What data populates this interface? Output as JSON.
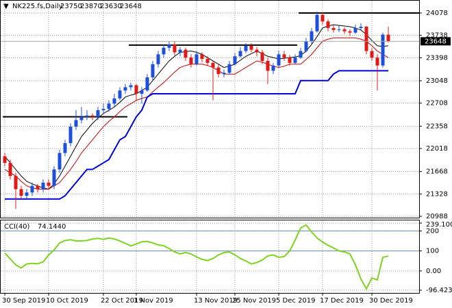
{
  "chart_data": {
    "type": "candlestick",
    "title": "NK225.fs,Daily",
    "up_color": "#1f4fd8",
    "down_color": "#e01818",
    "categories": [
      "30 Sep 2019",
      null,
      null,
      null,
      null,
      null,
      null,
      null,
      "10 Oct 2019",
      null,
      null,
      null,
      null,
      null,
      null,
      null,
      null,
      null,
      "22 Oct 2019",
      null,
      null,
      null,
      null,
      null,
      "1 Nov 2019",
      null,
      null,
      null,
      null,
      null,
      null,
      null,
      null,
      null,
      null,
      "13 Nov 2019",
      null,
      null,
      null,
      null,
      null,
      null,
      "25 Nov 2019",
      null,
      null,
      null,
      null,
      null,
      null,
      null,
      "5 Dec 2019",
      null,
      null,
      null,
      null,
      null,
      null,
      null,
      "17 Dec 2019",
      null,
      null,
      null,
      null,
      null,
      null,
      null,
      null,
      "30 Dec 2019",
      null,
      null,
      null
    ],
    "candles": [
      [
        21900,
        21950,
        21750,
        21800
      ],
      [
        21800,
        21850,
        21550,
        21600
      ],
      [
        21600,
        21650,
        21100,
        21400
      ],
      [
        21400,
        21450,
        21250,
        21300
      ],
      [
        21300,
        21400,
        21250,
        21350
      ],
      [
        21350,
        21500,
        21300,
        21450
      ],
      [
        21450,
        21480,
        21350,
        21400
      ],
      [
        21400,
        21550,
        21350,
        21500
      ],
      [
        21500,
        21550,
        21400,
        21450
      ],
      [
        21450,
        21750,
        21400,
        21700
      ],
      [
        21700,
        22000,
        21650,
        21950
      ],
      [
        21950,
        22150,
        21900,
        22100
      ],
      [
        22100,
        22400,
        22050,
        22350
      ],
      [
        22350,
        22600,
        22300,
        22450
      ],
      [
        22450,
        22650,
        22400,
        22500
      ],
      [
        22500,
        22600,
        22450,
        22520
      ],
      [
        22520,
        22550,
        22450,
        22500
      ],
      [
        22500,
        22650,
        22450,
        22600
      ],
      [
        22600,
        22700,
        22550,
        22620
      ],
      [
        22620,
        22750,
        22580,
        22700
      ],
      [
        22700,
        22850,
        22650,
        22780
      ],
      [
        22780,
        22950,
        22750,
        22900
      ],
      [
        22900,
        23000,
        22850,
        22950
      ],
      [
        22950,
        23020,
        22900,
        22980
      ],
      [
        22980,
        23000,
        22750,
        22850
      ],
      [
        22850,
        22950,
        22700,
        22900
      ],
      [
        22900,
        23150,
        22880,
        23100
      ],
      [
        23100,
        23350,
        23050,
        23300
      ],
      [
        23300,
        23500,
        23250,
        23450
      ],
      [
        23450,
        23600,
        23400,
        23550
      ],
      [
        23550,
        23650,
        23500,
        23600
      ],
      [
        23600,
        23650,
        23430,
        23480
      ],
      [
        23480,
        23560,
        23420,
        23520
      ],
      [
        23520,
        23550,
        23350,
        23400
      ],
      [
        23400,
        23450,
        23250,
        23300
      ],
      [
        23300,
        23500,
        23280,
        23450
      ],
      [
        23450,
        23480,
        23330,
        23380
      ],
      [
        23380,
        23420,
        23280,
        23320
      ],
      [
        23320,
        23350,
        22750,
        23250
      ],
      [
        23250,
        23300,
        23100,
        23150
      ],
      [
        23150,
        23220,
        23100,
        23170
      ],
      [
        23170,
        23350,
        23150,
        23300
      ],
      [
        23300,
        23470,
        23280,
        23420
      ],
      [
        23420,
        23560,
        23400,
        23500
      ],
      [
        23500,
        23620,
        23470,
        23580
      ],
      [
        23580,
        23620,
        23480,
        23520
      ],
      [
        23520,
        23560,
        23420,
        23480
      ],
      [
        23480,
        23520,
        23300,
        23350
      ],
      [
        23350,
        23400,
        23000,
        23200
      ],
      [
        23200,
        23320,
        23150,
        23280
      ],
      [
        23280,
        23500,
        23250,
        23450
      ],
      [
        23450,
        23500,
        23350,
        23400
      ],
      [
        23400,
        23440,
        23280,
        23320
      ],
      [
        23320,
        23450,
        23300,
        23400
      ],
      [
        23400,
        23550,
        23380,
        23500
      ],
      [
        23500,
        23700,
        23480,
        23650
      ],
      [
        23650,
        23850,
        23600,
        23800
      ],
      [
        23800,
        24100,
        23780,
        24050
      ],
      [
        24050,
        24090,
        23900,
        23950
      ],
      [
        23950,
        23980,
        23800,
        23850
      ],
      [
        23850,
        23900,
        23780,
        23820
      ],
      [
        23820,
        23880,
        23790,
        23830
      ],
      [
        23830,
        23860,
        23760,
        23800
      ],
      [
        23800,
        23830,
        23730,
        23780
      ],
      [
        23780,
        23900,
        23760,
        23850
      ],
      [
        23850,
        23920,
        23820,
        23870
      ],
      [
        23870,
        23880,
        23450,
        23500
      ],
      [
        23500,
        23550,
        23350,
        23400
      ],
      [
        23400,
        23450,
        22900,
        23280
      ],
      [
        23280,
        23780,
        23250,
        23750
      ],
      [
        23750,
        23870,
        23630,
        23648
      ]
    ],
    "lines": [
      {
        "color": "#000000",
        "width": 1,
        "values": [
          21900,
          21800,
          21700,
          21600,
          21520,
          21480,
          21450,
          21420,
          21400,
          21480,
          21600,
          21750,
          21900,
          22050,
          22200,
          22300,
          22400,
          22480,
          22550,
          22600,
          22650,
          22720,
          22800,
          22830,
          22850,
          22900,
          22950,
          23050,
          23150,
          23250,
          23350,
          23420,
          23480,
          23490,
          23500,
          23480,
          23450,
          23400,
          23350,
          23300,
          23250,
          23270,
          23300,
          23360,
          23420,
          23460,
          23500,
          23460,
          23420,
          23400,
          23380,
          23390,
          23400,
          23410,
          23430,
          23500,
          23600,
          23720,
          23850,
          23880,
          23900,
          23890,
          23880,
          23870,
          23850,
          23820,
          23750,
          23660,
          23580,
          23570,
          23580
        ]
      },
      {
        "color": "#cc0000",
        "width": 1,
        "values": [
          21700,
          21650,
          21600,
          21520,
          21450,
          21420,
          21400,
          21400,
          21400,
          21450,
          21500,
          21600,
          21700,
          21820,
          21950,
          22050,
          22150,
          22250,
          22350,
          22430,
          22500,
          22580,
          22650,
          22700,
          22750,
          22780,
          22800,
          22880,
          22950,
          23020,
          23100,
          23180,
          23250,
          23280,
          23300,
          23300,
          23300,
          23280,
          23250,
          23200,
          23150,
          23150,
          23150,
          23200,
          23250,
          23300,
          23350,
          23330,
          23300,
          23270,
          23250,
          23270,
          23300,
          23300,
          23300,
          23370,
          23450,
          23550,
          23650,
          23680,
          23700,
          23700,
          23700,
          23700,
          23700,
          23680,
          23650,
          23580,
          23500,
          23450,
          23400
        ]
      },
      {
        "color": "#0000dd",
        "width": 2,
        "values": [
          21250,
          21250,
          21250,
          21250,
          21250,
          21250,
          21250,
          21250,
          21250,
          21250,
          21250,
          21300,
          21400,
          21500,
          21600,
          21700,
          21700,
          21750,
          21800,
          21850,
          22000,
          22150,
          22200,
          22350,
          22500,
          22600,
          22800,
          22850,
          22850,
          22850,
          22850,
          22850,
          22850,
          22850,
          22850,
          22850,
          22850,
          22850,
          22850,
          22850,
          22850,
          22850,
          22850,
          22850,
          22850,
          22850,
          22850,
          22850,
          22850,
          22850,
          22850,
          22850,
          22850,
          22850,
          23050,
          23050,
          23050,
          23050,
          23050,
          23050,
          23150,
          23200,
          23200,
          23200,
          23200,
          23200,
          23200,
          23200,
          23200,
          23200,
          23200
        ]
      }
    ],
    "levels": [
      {
        "value": 22500,
        "from": 0,
        "to": 22
      },
      {
        "value": 23590,
        "from": 23,
        "to": 53
      },
      {
        "value": 24078,
        "from": 54
      }
    ],
    "ylim": [
      20967,
      24255
    ],
    "yticks": [
      24078,
      23738,
      23398,
      23048,
      22708,
      22358,
      22018,
      21668,
      21328,
      20988
    ],
    "cci": {
      "label": "CCI(40)",
      "value_label": "74.1440",
      "color": "#7ed321",
      "values": [
        90,
        60,
        30,
        15,
        35,
        38,
        36,
        45,
        80,
        105,
        140,
        152,
        156,
        150,
        150,
        152,
        160,
        163,
        158,
        165,
        160,
        150,
        138,
        125,
        135,
        146,
        148,
        140,
        130,
        126,
        112,
        95,
        85,
        92,
        85,
        70,
        58,
        52,
        62,
        80,
        92,
        95,
        80,
        62,
        50,
        35,
        42,
        55,
        75,
        80,
        68,
        72,
        100,
        155,
        215,
        230,
        195,
        165,
        145,
        128,
        115,
        100,
        95,
        85,
        30,
        -40,
        -90,
        -35,
        -45,
        68,
        74.144
      ],
      "ylim": [
        -96.4234,
        239.1008
      ],
      "yticks": [
        239.1008,
        200,
        100,
        {
          "value": 0,
          "label": "0.00"
        },
        -96.4234
      ],
      "levels": [
        200,
        100
      ]
    }
  }
}
